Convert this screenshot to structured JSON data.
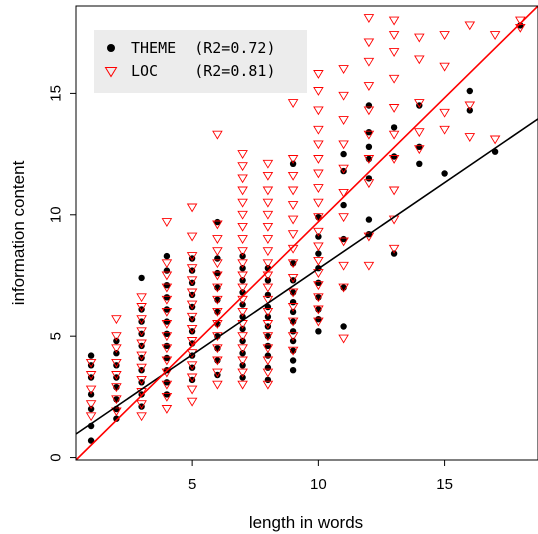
{
  "chart_data": {
    "type": "scatter",
    "xlabel": "length in words",
    "ylabel": "information content",
    "xlim": [
      0.4,
      18.7
    ],
    "ylim": [
      -0.1,
      18.6
    ],
    "x_ticks": [
      5,
      10,
      15
    ],
    "y_ticks": [
      0,
      5,
      10,
      15
    ],
    "grid": false,
    "legend_position": "top-left",
    "legend": [
      {
        "label": "THEME  (R2=0.72)",
        "series": "THEME"
      },
      {
        "label": "LOC    (R2=0.81)",
        "series": "LOC"
      }
    ],
    "series": [
      {
        "name": "THEME",
        "marker": "filled-circle",
        "color": "#000000",
        "fit_line": {
          "x": [
            0.4,
            18.7
          ],
          "y": [
            0.97,
            13.95
          ]
        },
        "points": [
          [
            1,
            0.7
          ],
          [
            1,
            1.3
          ],
          [
            1,
            2.0
          ],
          [
            1,
            2.6
          ],
          [
            1,
            3.3
          ],
          [
            1,
            3.8
          ],
          [
            1,
            4.2
          ],
          [
            2,
            1.6
          ],
          [
            2,
            2.0
          ],
          [
            2,
            2.4
          ],
          [
            2,
            2.9
          ],
          [
            2,
            3.3
          ],
          [
            2,
            3.8
          ],
          [
            2,
            4.3
          ],
          [
            2,
            4.8
          ],
          [
            3,
            2.1
          ],
          [
            3,
            2.6
          ],
          [
            3,
            3.1
          ],
          [
            3,
            3.6
          ],
          [
            3,
            4.1
          ],
          [
            3,
            4.6
          ],
          [
            3,
            5.1
          ],
          [
            3,
            5.6
          ],
          [
            3,
            6.1
          ],
          [
            3,
            7.4
          ],
          [
            4,
            2.6
          ],
          [
            4,
            3.1
          ],
          [
            4,
            3.6
          ],
          [
            4,
            4.1
          ],
          [
            4,
            4.6
          ],
          [
            4,
            5.1
          ],
          [
            4,
            5.6
          ],
          [
            4,
            6.1
          ],
          [
            4,
            6.6
          ],
          [
            4,
            7.1
          ],
          [
            4,
            7.7
          ],
          [
            4,
            8.3
          ],
          [
            5,
            3.2
          ],
          [
            5,
            3.7
          ],
          [
            5,
            4.2
          ],
          [
            5,
            4.7
          ],
          [
            5,
            5.2
          ],
          [
            5,
            5.7
          ],
          [
            5,
            6.2
          ],
          [
            5,
            6.7
          ],
          [
            5,
            7.2
          ],
          [
            5,
            7.7
          ],
          [
            5,
            8.2
          ],
          [
            6,
            3.4
          ],
          [
            6,
            4.0
          ],
          [
            6,
            4.5
          ],
          [
            6,
            5.0
          ],
          [
            6,
            5.5
          ],
          [
            6,
            6.0
          ],
          [
            6,
            6.5
          ],
          [
            6,
            7.0
          ],
          [
            6,
            7.6
          ],
          [
            6,
            8.2
          ],
          [
            6,
            9.7
          ],
          [
            7,
            3.3
          ],
          [
            7,
            3.8
          ],
          [
            7,
            4.3
          ],
          [
            7,
            4.8
          ],
          [
            7,
            5.3
          ],
          [
            7,
            5.8
          ],
          [
            7,
            6.3
          ],
          [
            7,
            6.8
          ],
          [
            7,
            7.3
          ],
          [
            7,
            7.8
          ],
          [
            7,
            8.3
          ],
          [
            8,
            3.2
          ],
          [
            8,
            3.7
          ],
          [
            8,
            4.2
          ],
          [
            8,
            4.6
          ],
          [
            8,
            5.0
          ],
          [
            8,
            5.4
          ],
          [
            8,
            5.8
          ],
          [
            8,
            6.2
          ],
          [
            8,
            6.7
          ],
          [
            8,
            7.3
          ],
          [
            8,
            7.8
          ],
          [
            9,
            3.6
          ],
          [
            9,
            4.0
          ],
          [
            9,
            4.4
          ],
          [
            9,
            4.8
          ],
          [
            9,
            5.2
          ],
          [
            9,
            5.6
          ],
          [
            9,
            6.0
          ],
          [
            9,
            6.4
          ],
          [
            9,
            6.8
          ],
          [
            9,
            7.3
          ],
          [
            9,
            8.0
          ],
          [
            9,
            12.1
          ],
          [
            10,
            5.2
          ],
          [
            10,
            5.7
          ],
          [
            10,
            6.1
          ],
          [
            10,
            6.6
          ],
          [
            10,
            7.2
          ],
          [
            10,
            7.8
          ],
          [
            10,
            8.4
          ],
          [
            10,
            9.1
          ],
          [
            10,
            9.9
          ],
          [
            11,
            5.4
          ],
          [
            11,
            7.0
          ],
          [
            11,
            9.0
          ],
          [
            11,
            10.4
          ],
          [
            11,
            11.8
          ],
          [
            11,
            12.5
          ],
          [
            12,
            9.2
          ],
          [
            12,
            9.8
          ],
          [
            12,
            11.5
          ],
          [
            12,
            12.3
          ],
          [
            12,
            12.8
          ],
          [
            12,
            13.4
          ],
          [
            12,
            14.5
          ],
          [
            13,
            8.4
          ],
          [
            13,
            12.4
          ],
          [
            13,
            13.6
          ],
          [
            14,
            12.1
          ],
          [
            14,
            12.8
          ],
          [
            14,
            14.5
          ],
          [
            15,
            11.7
          ],
          [
            16,
            14.3
          ],
          [
            16,
            15.1
          ],
          [
            17,
            12.6
          ],
          [
            18,
            17.8
          ]
        ]
      },
      {
        "name": "LOC",
        "marker": "open-triangle-down",
        "color": "#ff0000",
        "fit_line": {
          "x": [
            0.4,
            18.7
          ],
          "y": [
            -0.1,
            18.6
          ]
        },
        "points": [
          [
            1,
            1.7
          ],
          [
            1,
            2.2
          ],
          [
            1,
            2.8
          ],
          [
            1,
            3.4
          ],
          [
            1,
            3.9
          ],
          [
            2,
            1.9
          ],
          [
            2,
            2.4
          ],
          [
            2,
            2.9
          ],
          [
            2,
            3.4
          ],
          [
            2,
            3.9
          ],
          [
            2,
            4.5
          ],
          [
            2,
            5.0
          ],
          [
            2,
            5.7
          ],
          [
            3,
            1.7
          ],
          [
            3,
            2.2
          ],
          [
            3,
            2.7
          ],
          [
            3,
            3.2
          ],
          [
            3,
            3.7
          ],
          [
            3,
            4.2
          ],
          [
            3,
            4.7
          ],
          [
            3,
            5.2
          ],
          [
            3,
            5.7
          ],
          [
            3,
            6.2
          ],
          [
            3,
            6.6
          ],
          [
            4,
            2.0
          ],
          [
            4,
            2.5
          ],
          [
            4,
            3.0
          ],
          [
            4,
            3.5
          ],
          [
            4,
            4.0
          ],
          [
            4,
            4.5
          ],
          [
            4,
            5.0
          ],
          [
            4,
            5.5
          ],
          [
            4,
            6.0
          ],
          [
            4,
            6.5
          ],
          [
            4,
            7.0
          ],
          [
            4,
            7.5
          ],
          [
            4,
            8.0
          ],
          [
            4,
            9.7
          ],
          [
            5,
            2.3
          ],
          [
            5,
            2.8
          ],
          [
            5,
            3.3
          ],
          [
            5,
            3.8
          ],
          [
            5,
            4.3
          ],
          [
            5,
            4.8
          ],
          [
            5,
            5.3
          ],
          [
            5,
            5.8
          ],
          [
            5,
            6.3
          ],
          [
            5,
            6.8
          ],
          [
            5,
            7.3
          ],
          [
            5,
            7.8
          ],
          [
            5,
            8.3
          ],
          [
            5,
            9.1
          ],
          [
            5,
            10.3
          ],
          [
            6,
            3.0
          ],
          [
            6,
            3.5
          ],
          [
            6,
            4.0
          ],
          [
            6,
            4.5
          ],
          [
            6,
            5.0
          ],
          [
            6,
            5.5
          ],
          [
            6,
            6.0
          ],
          [
            6,
            6.5
          ],
          [
            6,
            7.0
          ],
          [
            6,
            7.5
          ],
          [
            6,
            8.0
          ],
          [
            6,
            8.5
          ],
          [
            6,
            9.0
          ],
          [
            6,
            9.6
          ],
          [
            6,
            13.3
          ],
          [
            7,
            3.0
          ],
          [
            7,
            3.5
          ],
          [
            7,
            4.0
          ],
          [
            7,
            4.5
          ],
          [
            7,
            5.0
          ],
          [
            7,
            5.5
          ],
          [
            7,
            6.0
          ],
          [
            7,
            6.5
          ],
          [
            7,
            7.0
          ],
          [
            7,
            7.5
          ],
          [
            7,
            8.0
          ],
          [
            7,
            8.5
          ],
          [
            7,
            9.0
          ],
          [
            7,
            9.5
          ],
          [
            7,
            10.0
          ],
          [
            7,
            10.5
          ],
          [
            7,
            11.0
          ],
          [
            7,
            11.5
          ],
          [
            7,
            12.0
          ],
          [
            7,
            12.5
          ],
          [
            8,
            3.0
          ],
          [
            8,
            3.5
          ],
          [
            8,
            4.0
          ],
          [
            8,
            4.5
          ],
          [
            8,
            5.0
          ],
          [
            8,
            5.5
          ],
          [
            8,
            6.0
          ],
          [
            8,
            6.5
          ],
          [
            8,
            7.0
          ],
          [
            8,
            7.5
          ],
          [
            8,
            8.0
          ],
          [
            8,
            8.5
          ],
          [
            8,
            9.0
          ],
          [
            8,
            9.5
          ],
          [
            8,
            10.0
          ],
          [
            8,
            10.5
          ],
          [
            8,
            11.0
          ],
          [
            8,
            11.6
          ],
          [
            8,
            12.1
          ],
          [
            9,
            4.4
          ],
          [
            9,
            5.0
          ],
          [
            9,
            5.6
          ],
          [
            9,
            6.2
          ],
          [
            9,
            6.8
          ],
          [
            9,
            7.4
          ],
          [
            9,
            8.0
          ],
          [
            9,
            8.6
          ],
          [
            9,
            9.2
          ],
          [
            9,
            9.8
          ],
          [
            9,
            10.4
          ],
          [
            9,
            11.0
          ],
          [
            9,
            11.6
          ],
          [
            9,
            12.3
          ],
          [
            9,
            14.6
          ],
          [
            10,
            5.6
          ],
          [
            10,
            6.1
          ],
          [
            10,
            6.6
          ],
          [
            10,
            7.1
          ],
          [
            10,
            7.6
          ],
          [
            10,
            8.1
          ],
          [
            10,
            8.7
          ],
          [
            10,
            9.3
          ],
          [
            10,
            9.9
          ],
          [
            10,
            10.5
          ],
          [
            10,
            11.1
          ],
          [
            10,
            11.7
          ],
          [
            10,
            12.3
          ],
          [
            10,
            12.9
          ],
          [
            10,
            13.5
          ],
          [
            10,
            14.3
          ],
          [
            10,
            15.1
          ],
          [
            10,
            15.8
          ],
          [
            11,
            4.9
          ],
          [
            11,
            7.0
          ],
          [
            11,
            7.9
          ],
          [
            11,
            8.9
          ],
          [
            11,
            9.9
          ],
          [
            11,
            10.9
          ],
          [
            11,
            11.9
          ],
          [
            11,
            12.9
          ],
          [
            11,
            13.9
          ],
          [
            11,
            14.9
          ],
          [
            11,
            16.0
          ],
          [
            12,
            7.9
          ],
          [
            12,
            9.1
          ],
          [
            12,
            11.3
          ],
          [
            12,
            12.3
          ],
          [
            12,
            13.3
          ],
          [
            12,
            14.3
          ],
          [
            12,
            15.3
          ],
          [
            12,
            16.3
          ],
          [
            12,
            17.1
          ],
          [
            12,
            18.1
          ],
          [
            13,
            8.6
          ],
          [
            13,
            9.8
          ],
          [
            13,
            11.0
          ],
          [
            13,
            12.3
          ],
          [
            13,
            13.3
          ],
          [
            13,
            14.4
          ],
          [
            13,
            15.6
          ],
          [
            13,
            16.7
          ],
          [
            13,
            17.4
          ],
          [
            13,
            18.0
          ],
          [
            14,
            12.7
          ],
          [
            14,
            13.4
          ],
          [
            14,
            14.6
          ],
          [
            14,
            16.4
          ],
          [
            14,
            17.3
          ],
          [
            15,
            13.5
          ],
          [
            15,
            14.2
          ],
          [
            15,
            16.1
          ],
          [
            15,
            17.4
          ],
          [
            16,
            13.2
          ],
          [
            16,
            14.5
          ],
          [
            16,
            17.8
          ],
          [
            17,
            13.1
          ],
          [
            17,
            17.4
          ],
          [
            18,
            17.7
          ],
          [
            18,
            18.0
          ]
        ]
      }
    ]
  }
}
